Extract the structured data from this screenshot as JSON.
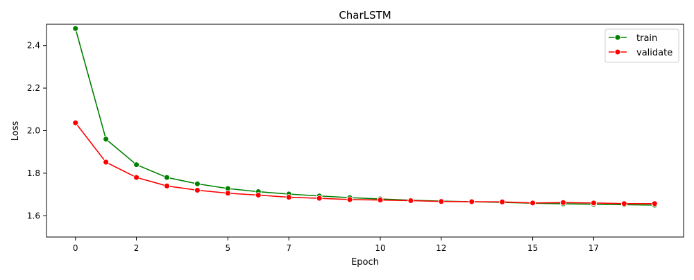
{
  "chart_data": {
    "type": "line",
    "title": "CharLSTM",
    "xlabel": "Epoch",
    "ylabel": "Loss",
    "xlim": [
      -0.95,
      19.95
    ],
    "ylim": [
      1.5,
      2.5
    ],
    "x_ticks": [
      0,
      2,
      5,
      7,
      10,
      12,
      15,
      17
    ],
    "x_tick_labels": [
      "0",
      "2",
      "5",
      "7",
      "10",
      "12",
      "15",
      "17"
    ],
    "y_ticks": [
      1.6,
      1.8,
      2.0,
      2.2,
      2.4
    ],
    "y_tick_labels": [
      "1.6",
      "1.8",
      "2.0",
      "2.2",
      "2.4"
    ],
    "grid": false,
    "legend_position": "upper right",
    "x": [
      0,
      1,
      2,
      3,
      4,
      5,
      6,
      7,
      8,
      9,
      10,
      11,
      12,
      13,
      14,
      15,
      16,
      17,
      18,
      19
    ],
    "series": [
      {
        "name": "train",
        "color": "#008000",
        "values": [
          2.48,
          1.96,
          1.84,
          1.78,
          1.75,
          1.728,
          1.713,
          1.702,
          1.693,
          1.685,
          1.679,
          1.673,
          1.669,
          1.666,
          1.663,
          1.659,
          1.656,
          1.654,
          1.652,
          1.65
        ]
      },
      {
        "name": "validate",
        "color": "#ff0000",
        "values": [
          2.037,
          1.852,
          1.78,
          1.74,
          1.72,
          1.706,
          1.697,
          1.687,
          1.682,
          1.676,
          1.674,
          1.671,
          1.667,
          1.666,
          1.665,
          1.66,
          1.662,
          1.66,
          1.657,
          1.657
        ]
      }
    ]
  }
}
